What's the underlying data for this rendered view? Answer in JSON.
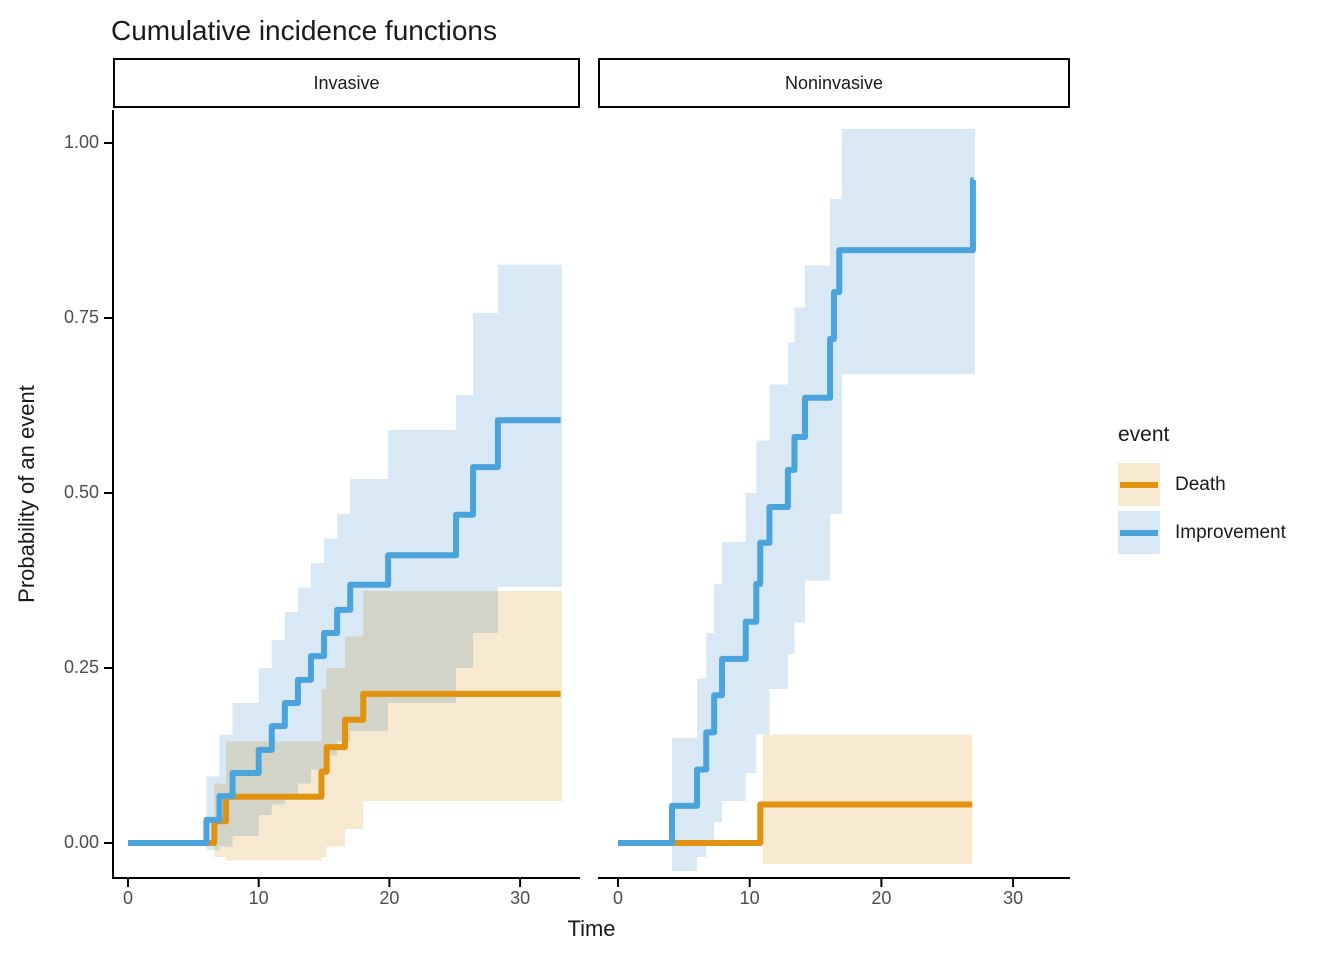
{
  "chart_data": {
    "type": "line",
    "variant": "step-cumulative-incidence",
    "title": "Cumulative incidence functions",
    "xlabel": "Time",
    "ylabel": "Probability of an event",
    "x_tick_labels": [
      "0",
      "10",
      "20",
      "30"
    ],
    "x_tick_values": [
      0,
      10,
      20,
      30
    ],
    "y_tick_labels": [
      "0.00",
      "0.25",
      "0.50",
      "0.75",
      "1.00"
    ],
    "y_tick_values": [
      0,
      0.25,
      0.5,
      0.75,
      1
    ],
    "xlim": [
      0,
      33
    ],
    "ylim": [
      0,
      1
    ],
    "grid": false,
    "legend": {
      "title": "event",
      "position": "right",
      "entries": [
        {
          "label": "Death",
          "line_color": "#E1920E",
          "fill_color": "#F7E9CF"
        },
        {
          "label": "Improvement",
          "line_color": "#4BA3DC",
          "fill_color": "#D9E8F5"
        }
      ]
    },
    "facets": [
      {
        "label": "Invasive",
        "series": [
          {
            "name": "Death",
            "color": "#E1920E",
            "band_color": "#F7E9CF",
            "steps": [
              [
                0,
                0
              ],
              [
                6.6,
                0.031
              ],
              [
                7.5,
                0.066
              ],
              [
                14.8,
                0.102
              ],
              [
                15.2,
                0.137
              ],
              [
                16.6,
                0.176
              ],
              [
                18,
                0.213
              ]
            ],
            "end_time": 33.1,
            "band": [
              [
                6.6,
                -0.02,
                0.085
              ],
              [
                7.5,
                -0.025,
                0.145
              ],
              [
                14.8,
                -0.02,
                0.22
              ],
              [
                15.2,
                -0.005,
                0.25
              ],
              [
                16.6,
                0.02,
                0.295
              ],
              [
                18,
                0.06,
                0.36
              ]
            ],
            "band_end_time": 33.2
          },
          {
            "name": "Improvement",
            "color": "#4BA3DC",
            "band_color": "#D9E8F5",
            "steps": [
              [
                0,
                0
              ],
              [
                6,
                0.033
              ],
              [
                7,
                0.067
              ],
              [
                8,
                0.1
              ],
              [
                10,
                0.133
              ],
              [
                11,
                0.167
              ],
              [
                12,
                0.2
              ],
              [
                13,
                0.233
              ],
              [
                14,
                0.267
              ],
              [
                15,
                0.3
              ],
              [
                16,
                0.333
              ],
              [
                17,
                0.369
              ],
              [
                19.9,
                0.411
              ],
              [
                25.1,
                0.469
              ],
              [
                26.4,
                0.537
              ],
              [
                28.3,
                0.604
              ]
            ],
            "end_time": 33.1,
            "band": [
              [
                6,
                -0.01,
                0.095
              ],
              [
                7,
                -0.005,
                0.155
              ],
              [
                8,
                0.01,
                0.2
              ],
              [
                10,
                0.04,
                0.25
              ],
              [
                11,
                0.055,
                0.29
              ],
              [
                12,
                0.07,
                0.33
              ],
              [
                13,
                0.085,
                0.365
              ],
              [
                14,
                0.105,
                0.4
              ],
              [
                15,
                0.125,
                0.435
              ],
              [
                16,
                0.145,
                0.47
              ],
              [
                17,
                0.16,
                0.52
              ],
              [
                19.9,
                0.2,
                0.59
              ],
              [
                25.1,
                0.25,
                0.64
              ],
              [
                26.4,
                0.3,
                0.757
              ],
              [
                28.3,
                0.366,
                0.826
              ]
            ],
            "band_end_time": 33.2
          }
        ]
      },
      {
        "label": "Noninvasive",
        "series": [
          {
            "name": "Death",
            "color": "#E1920E",
            "band_color": "#F7E9CF",
            "steps": [
              [
                0,
                0
              ],
              [
                10.8,
                0.055
              ]
            ],
            "end_time": 26.9,
            "band": [
              [
                11,
                -0.03,
                0.155
              ]
            ],
            "band_end_time": 26.9
          },
          {
            "name": "Improvement",
            "color": "#4BA3DC",
            "band_color": "#D9E8F5",
            "steps": [
              [
                0,
                0
              ],
              [
                4.1,
                0.053
              ],
              [
                6,
                0.105
              ],
              [
                6.7,
                0.158
              ],
              [
                7.3,
                0.211
              ],
              [
                7.9,
                0.263
              ],
              [
                9.7,
                0.316
              ],
              [
                10.5,
                0.37
              ],
              [
                10.8,
                0.429
              ],
              [
                11.5,
                0.48
              ],
              [
                12.9,
                0.533
              ],
              [
                13.4,
                0.58
              ],
              [
                14.2,
                0.636
              ],
              [
                16.1,
                0.72
              ],
              [
                16.4,
                0.787
              ],
              [
                16.8,
                0.847
              ],
              [
                26.95,
                0.947
              ]
            ],
            "end_time": 27.0,
            "band": [
              [
                4.1,
                -0.04,
                0.15
              ],
              [
                6,
                -0.02,
                0.235
              ],
              [
                6.7,
                0,
                0.3
              ],
              [
                7.3,
                0.03,
                0.37
              ],
              [
                7.9,
                0.06,
                0.43
              ],
              [
                9.7,
                0.1,
                0.5
              ],
              [
                10.5,
                0.155,
                0.575
              ],
              [
                11.5,
                0.22,
                0.655
              ],
              [
                12.9,
                0.27,
                0.715
              ],
              [
                13.4,
                0.315,
                0.765
              ],
              [
                14.2,
                0.375,
                0.825
              ],
              [
                16.1,
                0.47,
                0.92
              ],
              [
                17,
                0.67,
                1.02
              ]
            ],
            "band_end_time": 27.1
          }
        ]
      }
    ]
  }
}
